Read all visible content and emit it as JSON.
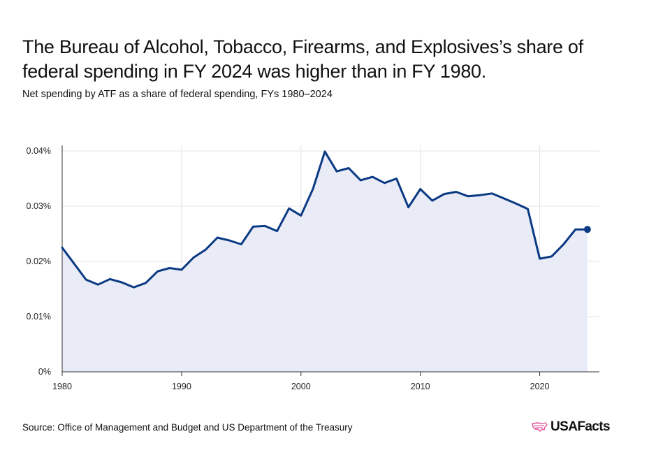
{
  "header": {
    "title": "The Bureau of Alcohol, Tobacco, Firearms, and Explosives’s share of federal spending in FY 2024 was higher than in FY 1980.",
    "subtitle": "Net spending by ATF as a share of federal spending, FYs 1980–2024"
  },
  "footer": {
    "source": "Source: Office of Management and Budget and US Department of the Treasury",
    "logo_text": "USAFacts",
    "logo_icon": "usa-map-icon"
  },
  "colors": {
    "line": "#0b3a84",
    "area": "#e9ecf6",
    "grid": "#e3e3e3",
    "logo_accent": "#e0539a"
  },
  "chart_data": {
    "type": "area",
    "x": [
      1980,
      1981,
      1982,
      1983,
      1984,
      1985,
      1986,
      1987,
      1988,
      1989,
      1990,
      1991,
      1992,
      1993,
      1994,
      1995,
      1996,
      1997,
      1998,
      1999,
      2000,
      2001,
      2002,
      2003,
      2004,
      2005,
      2006,
      2007,
      2008,
      2009,
      2010,
      2011,
      2012,
      2013,
      2014,
      2015,
      2016,
      2017,
      2018,
      2019,
      2020,
      2021,
      2022,
      2023,
      2024
    ],
    "series": [
      {
        "values": [
          0.0225,
          0.0196,
          0.0167,
          0.0158,
          0.0168,
          0.0162,
          0.0153,
          0.0161,
          0.0182,
          0.0188,
          0.0185,
          0.0207,
          0.0221,
          0.0243,
          0.0238,
          0.0231,
          0.0263,
          0.0264,
          0.0255,
          0.0296,
          0.0283,
          0.0331,
          0.0399,
          0.0363,
          0.0369,
          0.0347,
          0.0353,
          0.0342,
          0.035,
          0.0298,
          0.0331,
          0.031,
          0.0322,
          0.0326,
          0.0318,
          0.032,
          0.0323,
          0.0314,
          0.0305,
          0.0295,
          0.0205,
          0.0209,
          0.0231,
          0.0258,
          0.0258
        ]
      }
    ],
    "yticks": [
      "0%",
      "0.01%",
      "0.02%",
      "0.03%",
      "0.04%"
    ],
    "ytick_values": [
      0,
      0.01,
      0.02,
      0.03,
      0.04
    ],
    "xticks": [
      "1980",
      "1990",
      "2000",
      "2010",
      "2020"
    ],
    "xtick_values": [
      1980,
      1990,
      2000,
      2010,
      2020
    ],
    "ylim": [
      0,
      0.04
    ],
    "xlim": [
      1980,
      2025
    ],
    "grid": true,
    "last_point_marker": true
  }
}
